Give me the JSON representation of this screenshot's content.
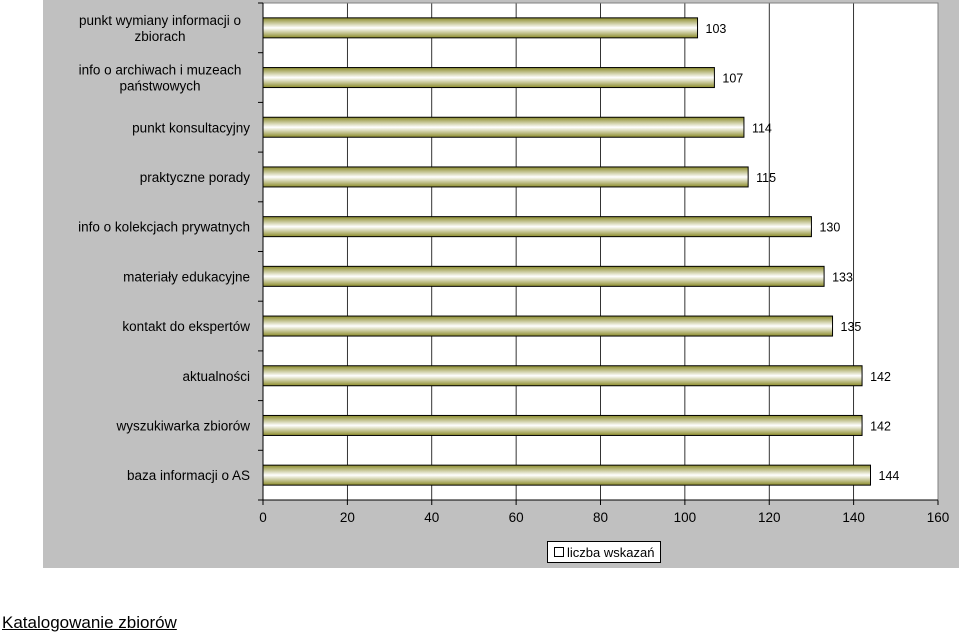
{
  "chart_data": {
    "type": "bar",
    "orientation": "horizontal",
    "categories": [
      "punkt wymiany informacji o zbiorach",
      "info o archiwach i muzeach państwowych",
      "punkt konsultacyjny",
      "praktyczne porady",
      "info o kolekcjach prywatnych",
      "materiały edukacyjne",
      "kontakt do ekspertów",
      "aktualności",
      "wyszukiwarka zbiorów",
      "baza informacji o AS"
    ],
    "series": [
      {
        "name": "liczba wskazań",
        "values": [
          103,
          107,
          114,
          115,
          130,
          133,
          135,
          142,
          142,
          144
        ]
      }
    ],
    "xlim": [
      0,
      160
    ],
    "xticks": [
      0,
      20,
      40,
      60,
      80,
      100,
      120,
      140,
      160
    ],
    "grid": true,
    "legend": "bottom",
    "data_labels": true,
    "colors": {
      "bar_edge": "#8b8b2a",
      "bar_center": "#ffffff",
      "plot_bg": "#ffffff",
      "panel_bg": "#c0c0c0"
    }
  },
  "legend": {
    "label": "liczba wskazań"
  },
  "caption": "Katalogowanie zbiorów"
}
